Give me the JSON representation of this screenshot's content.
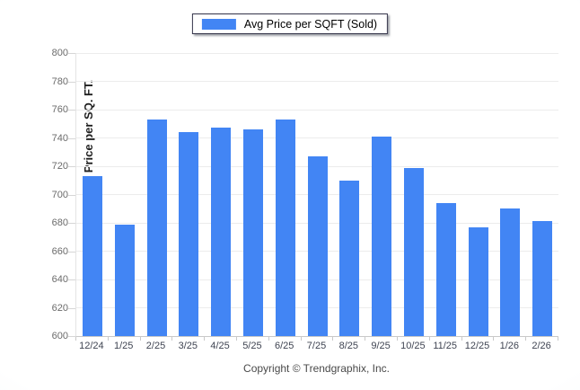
{
  "legend": {
    "label": "Avg Price per SQFT (Sold)",
    "swatch_color": "#4285f4"
  },
  "footer": {
    "copyright_text": "Copyright © Trendgraphix, Inc."
  },
  "colors": {
    "bar": "#4285f4",
    "gridline": "#ececec",
    "axis_line": "#c9c9c9",
    "y_tick_label": "#6b6b6b",
    "x_tick_label": "#3f4452",
    "background_edge": "#dce2ea"
  },
  "chart_data": {
    "type": "bar",
    "title": "Avg Price per SQFT (Sold)",
    "categories": [
      "12/24",
      "1/25",
      "2/25",
      "3/25",
      "4/25",
      "5/25",
      "6/25",
      "7/25",
      "8/25",
      "9/25",
      "10/25",
      "11/25",
      "12/25",
      "1/26",
      "2/26"
    ],
    "values": [
      713,
      679,
      753,
      744,
      747,
      746,
      753,
      727,
      710,
      741,
      719,
      694,
      677,
      690,
      681
    ],
    "series": [
      {
        "name": "Avg Price per SQFT (Sold)",
        "values": [
          713,
          679,
          753,
          744,
          747,
          746,
          753,
          727,
          710,
          741,
          719,
          694,
          677,
          690,
          681
        ]
      }
    ],
    "xlabel": "",
    "ylabel": "Avg. Price per SQ. FT.",
    "ylim": [
      600,
      800
    ],
    "yticks": [
      600,
      620,
      640,
      660,
      680,
      700,
      720,
      740,
      760,
      780,
      800
    ],
    "grid": true,
    "legend_position": "top-center",
    "bar_color": "#4285f4",
    "footnote": "Copyright © Trendgraphix, Inc."
  }
}
